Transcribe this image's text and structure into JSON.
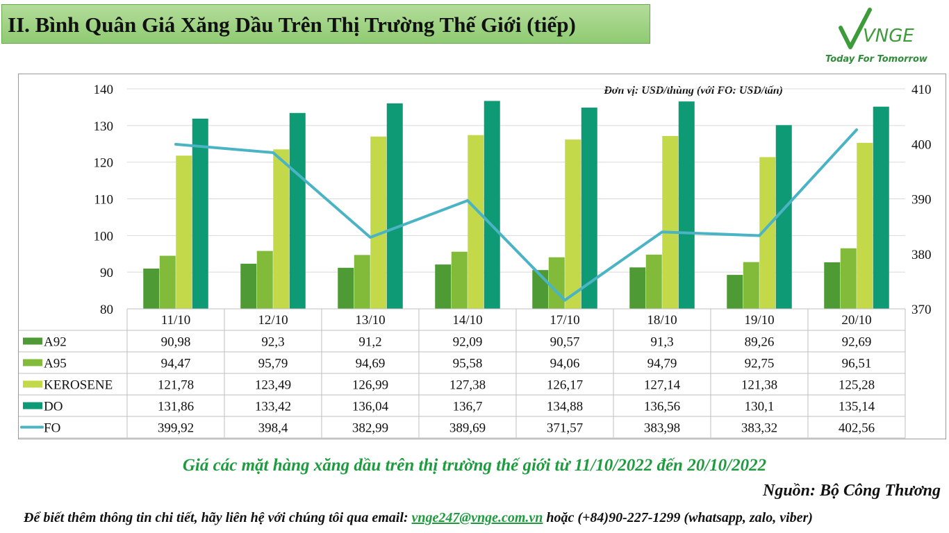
{
  "header": {
    "title": "II. Bình Quân Giá Xăng Dầu Trên Thị Trường Thế Giới (tiếp)"
  },
  "logo": {
    "brand": "VNGE",
    "tagline": "Today For Tomorrow",
    "color": "#3d9b3a"
  },
  "chart_data": {
    "type": "bar",
    "unit_note": "Đơn vị: USD/thùng (với FO: USD/tấn)",
    "categories": [
      "11/10",
      "12/10",
      "13/10",
      "14/10",
      "17/10",
      "18/10",
      "19/10",
      "20/10"
    ],
    "y_left": {
      "range": [
        80,
        140
      ],
      "ticks": [
        80,
        90,
        100,
        110,
        120,
        130,
        140
      ]
    },
    "y_right": {
      "range": [
        370,
        410
      ],
      "ticks": [
        370,
        380,
        390,
        400,
        410
      ]
    },
    "series": [
      {
        "name": "A92",
        "type": "bar",
        "axis": "left",
        "color": "#4e9a35",
        "values": [
          90.98,
          92.3,
          91.2,
          92.09,
          90.57,
          91.3,
          89.26,
          92.69
        ],
        "labels": [
          "90,98",
          "92,3",
          "91,2",
          "92,09",
          "90,57",
          "91,3",
          "89,26",
          "92,69"
        ]
      },
      {
        "name": "A95",
        "type": "bar",
        "axis": "left",
        "color": "#82bb3a",
        "values": [
          94.47,
          95.79,
          94.69,
          95.58,
          94.06,
          94.79,
          92.75,
          96.51
        ],
        "labels": [
          "94,47",
          "95,79",
          "94,69",
          "95,58",
          "94,06",
          "94,79",
          "92,75",
          "96,51"
        ]
      },
      {
        "name": "KEROSENE",
        "type": "bar",
        "axis": "left",
        "color": "#c4d94a",
        "values": [
          121.78,
          123.49,
          126.99,
          127.38,
          126.17,
          127.14,
          121.38,
          125.28
        ],
        "labels": [
          "121,78",
          "123,49",
          "126,99",
          "127,38",
          "126,17",
          "127,14",
          "121,38",
          "125,28"
        ]
      },
      {
        "name": "DO",
        "type": "bar",
        "axis": "left",
        "color": "#0e9a75",
        "values": [
          131.86,
          133.42,
          136.04,
          136.7,
          134.88,
          136.56,
          130.1,
          135.14
        ],
        "labels": [
          "131,86",
          "133,42",
          "136,04",
          "136,7",
          "134,88",
          "136,56",
          "130,1",
          "135,14"
        ]
      },
      {
        "name": "FO",
        "type": "line",
        "axis": "right",
        "color": "#4ab4c4",
        "values": [
          399.92,
          398.4,
          382.99,
          389.69,
          371.57,
          383.98,
          383.32,
          402.56
        ],
        "labels": [
          "399,92",
          "398,4",
          "382,99",
          "389,69",
          "371,57",
          "383,98",
          "383,32",
          "402,56"
        ]
      }
    ]
  },
  "footer": {
    "caption": "Giá các mặt hàng xăng dầu trên thị trường thế giới từ 11/10/2022 đến 20/10/2022",
    "source": "Nguồn: Bộ Công Thương",
    "contact_prefix": "Để biết thêm thông tin chi tiết, hãy liên hệ với chúng tôi qua email: ",
    "email": "vnge247@vnge.com.vn",
    "contact_suffix": " hoặc (+84)90-227-1299 (whatsapp, zalo, viber)"
  }
}
